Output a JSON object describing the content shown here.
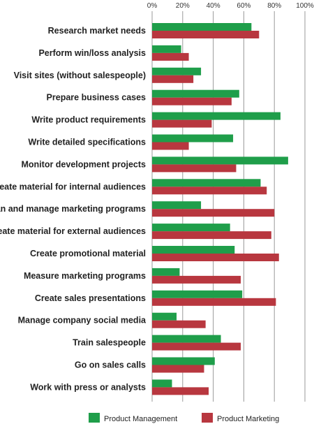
{
  "chart_data": {
    "type": "bar",
    "orientation": "horizontal",
    "categories": [
      "Research market needs",
      "Perform win/loss analysis",
      "Visit sites (without salespeople)",
      "Prepare business cases",
      "Write product requirements",
      "Write detailed specifications",
      "Monitor development projects",
      "Create material for internal audiences",
      "Plan and manage marketing programs",
      "Create material for external audiences",
      "Create promotional material",
      "Measure marketing programs",
      "Create sales presentations",
      "Manage company social media",
      "Train salespeople",
      "Go on sales calls",
      "Work with press or analysts"
    ],
    "series": [
      {
        "name": "Product Management",
        "color": "#1f9e4a",
        "values": [
          65,
          19,
          32,
          57,
          84,
          53,
          89,
          71,
          32,
          51,
          54,
          18,
          59,
          16,
          45,
          41,
          13
        ]
      },
      {
        "name": "Product Marketing",
        "color": "#b8373f",
        "values": [
          70,
          24,
          27,
          52,
          39,
          24,
          55,
          75,
          80,
          78,
          83,
          58,
          81,
          35,
          58,
          34,
          37
        ]
      }
    ],
    "xlim": [
      0,
      100
    ],
    "x_ticks": [
      "0%",
      "20%",
      "40%",
      "60%",
      "80%",
      "100%"
    ],
    "x_axis_position": "top",
    "grid": true,
    "legend_position": "bottom"
  }
}
